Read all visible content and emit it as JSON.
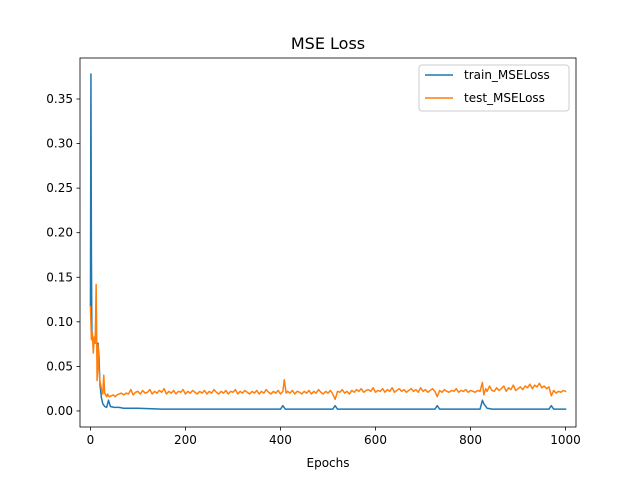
{
  "chart_data": {
    "type": "line",
    "title": "MSE Loss",
    "xlabel": "Epochs",
    "ylabel": "",
    "xlim": [
      -22,
      1022
    ],
    "ylim": [
      -0.018,
      0.396
    ],
    "xticks": [
      0,
      200,
      400,
      600,
      800,
      1000
    ],
    "xtick_labels": [
      "0",
      "200",
      "400",
      "600",
      "800",
      "1000"
    ],
    "yticks": [
      0.0,
      0.05,
      0.1,
      0.15,
      0.2,
      0.25,
      0.3,
      0.35
    ],
    "ytick_labels": [
      "0.00",
      "0.05",
      "0.10",
      "0.15",
      "0.20",
      "0.25",
      "0.30",
      "0.35"
    ],
    "grid": false,
    "legend_position": "top-right",
    "series": [
      {
        "name": "train_MSELoss",
        "color": "#1f77b4",
        "x": [
          0,
          1,
          2,
          3,
          5,
          8,
          10,
          12,
          14,
          16,
          18,
          20,
          23,
          26,
          30,
          34,
          38,
          42,
          50,
          60,
          70,
          80,
          100,
          150,
          200,
          250,
          300,
          350,
          400,
          405,
          410,
          450,
          500,
          510,
          515,
          520,
          550,
          600,
          650,
          700,
          725,
          730,
          735,
          780,
          800,
          820,
          825,
          828,
          835,
          845,
          870,
          900,
          950,
          965,
          970,
          975,
          1000
        ],
        "y": [
          0.118,
          0.378,
          0.18,
          0.085,
          0.077,
          0.076,
          0.076,
          0.077,
          0.075,
          0.076,
          0.06,
          0.03,
          0.015,
          0.008,
          0.005,
          0.004,
          0.012,
          0.005,
          0.004,
          0.004,
          0.003,
          0.003,
          0.003,
          0.002,
          0.002,
          0.002,
          0.002,
          0.002,
          0.002,
          0.006,
          0.002,
          0.002,
          0.002,
          0.002,
          0.006,
          0.002,
          0.002,
          0.002,
          0.002,
          0.002,
          0.002,
          0.006,
          0.002,
          0.002,
          0.002,
          0.002,
          0.012,
          0.008,
          0.003,
          0.002,
          0.002,
          0.002,
          0.002,
          0.002,
          0.006,
          0.002,
          0.002
        ]
      },
      {
        "name": "test_MSELoss",
        "color": "#ff7f0e",
        "x": [
          0,
          2,
          4,
          6,
          8,
          10,
          12,
          14,
          16,
          18,
          20,
          22,
          24,
          26,
          28,
          30,
          32,
          34,
          36,
          38,
          40,
          44,
          48,
          52,
          56,
          60,
          65,
          70,
          75,
          80,
          85,
          90,
          95,
          100,
          105,
          110,
          115,
          120,
          125,
          130,
          135,
          140,
          145,
          150,
          155,
          160,
          165,
          170,
          175,
          180,
          185,
          190,
          195,
          200,
          205,
          210,
          215,
          220,
          225,
          230,
          235,
          240,
          245,
          250,
          255,
          260,
          265,
          270,
          275,
          280,
          285,
          290,
          295,
          300,
          305,
          310,
          315,
          320,
          325,
          330,
          335,
          340,
          345,
          350,
          355,
          360,
          365,
          370,
          375,
          380,
          385,
          390,
          395,
          400,
          405,
          408,
          412,
          415,
          420,
          425,
          430,
          435,
          440,
          445,
          450,
          455,
          460,
          465,
          470,
          475,
          480,
          485,
          490,
          495,
          500,
          505,
          510,
          515,
          520,
          525,
          530,
          535,
          540,
          545,
          550,
          555,
          560,
          565,
          570,
          575,
          580,
          585,
          590,
          595,
          600,
          605,
          610,
          615,
          620,
          625,
          630,
          635,
          640,
          645,
          650,
          655,
          660,
          665,
          670,
          675,
          680,
          685,
          690,
          695,
          700,
          705,
          710,
          715,
          720,
          725,
          730,
          735,
          740,
          745,
          750,
          755,
          760,
          765,
          770,
          775,
          780,
          785,
          790,
          795,
          800,
          805,
          810,
          815,
          820,
          825,
          828,
          832,
          835,
          840,
          845,
          850,
          855,
          860,
          865,
          870,
          875,
          880,
          885,
          890,
          895,
          900,
          905,
          910,
          915,
          920,
          925,
          930,
          935,
          940,
          945,
          950,
          955,
          960,
          965,
          970,
          975,
          980,
          985,
          990,
          995,
          1000
        ],
        "y": [
          0.117,
          0.08,
          0.088,
          0.065,
          0.083,
          0.076,
          0.142,
          0.034,
          0.074,
          0.045,
          0.033,
          0.028,
          0.022,
          0.019,
          0.04,
          0.02,
          0.018,
          0.016,
          0.019,
          0.017,
          0.016,
          0.017,
          0.018,
          0.016,
          0.018,
          0.019,
          0.02,
          0.018,
          0.02,
          0.019,
          0.024,
          0.018,
          0.021,
          0.022,
          0.019,
          0.023,
          0.02,
          0.021,
          0.024,
          0.019,
          0.022,
          0.02,
          0.023,
          0.021,
          0.025,
          0.019,
          0.022,
          0.02,
          0.023,
          0.019,
          0.022,
          0.021,
          0.024,
          0.019,
          0.022,
          0.02,
          0.023,
          0.021,
          0.019,
          0.022,
          0.02,
          0.023,
          0.019,
          0.022,
          0.02,
          0.024,
          0.021,
          0.019,
          0.022,
          0.02,
          0.023,
          0.019,
          0.022,
          0.021,
          0.024,
          0.019,
          0.022,
          0.02,
          0.023,
          0.021,
          0.019,
          0.022,
          0.02,
          0.023,
          0.019,
          0.022,
          0.02,
          0.024,
          0.021,
          0.019,
          0.022,
          0.02,
          0.023,
          0.019,
          0.022,
          0.035,
          0.02,
          0.022,
          0.02,
          0.023,
          0.019,
          0.022,
          0.021,
          0.019,
          0.022,
          0.02,
          0.023,
          0.019,
          0.022,
          0.02,
          0.024,
          0.021,
          0.019,
          0.022,
          0.02,
          0.023,
          0.019,
          0.013,
          0.022,
          0.021,
          0.024,
          0.02,
          0.022,
          0.019,
          0.023,
          0.021,
          0.024,
          0.022,
          0.025,
          0.021,
          0.023,
          0.024,
          0.022,
          0.026,
          0.021,
          0.023,
          0.022,
          0.025,
          0.021,
          0.024,
          0.022,
          0.026,
          0.021,
          0.023,
          0.025,
          0.022,
          0.024,
          0.021,
          0.023,
          0.025,
          0.022,
          0.024,
          0.021,
          0.026,
          0.022,
          0.024,
          0.021,
          0.023,
          0.025,
          0.022,
          0.016,
          0.023,
          0.021,
          0.024,
          0.022,
          0.021,
          0.023,
          0.022,
          0.025,
          0.021,
          0.023,
          0.022,
          0.024,
          0.021,
          0.023,
          0.022,
          0.021,
          0.023,
          0.022,
          0.032,
          0.018,
          0.025,
          0.022,
          0.028,
          0.023,
          0.022,
          0.026,
          0.023,
          0.025,
          0.028,
          0.022,
          0.026,
          0.024,
          0.029,
          0.023,
          0.025,
          0.027,
          0.024,
          0.028,
          0.026,
          0.03,
          0.025,
          0.029,
          0.027,
          0.031,
          0.026,
          0.028,
          0.025,
          0.027,
          0.017,
          0.023,
          0.02,
          0.022,
          0.021,
          0.023,
          0.022
        ]
      }
    ]
  }
}
